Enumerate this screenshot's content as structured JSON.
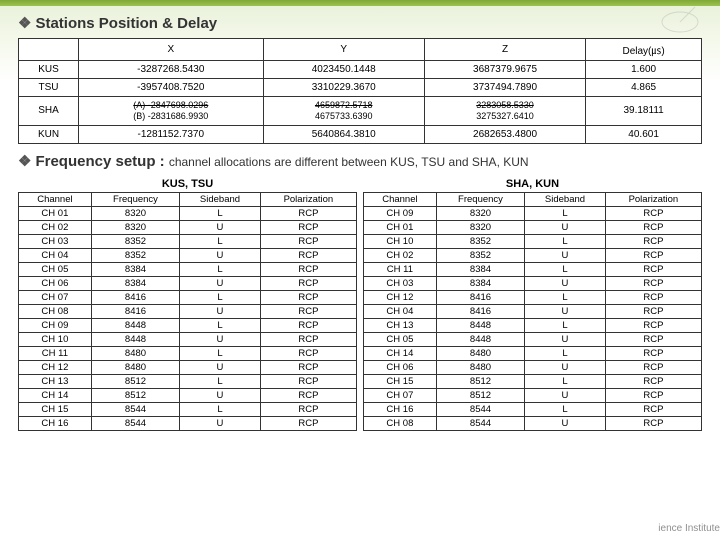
{
  "section1_title": "Stations Position & Delay",
  "section2_title_prefix": "Frequency setup : ",
  "section2_title_rest": "channel allocations are different between KUS, TSU and SHA, KUN",
  "stations": {
    "headers": [
      "",
      "X",
      "Y",
      "Z",
      "Delay(㎲)"
    ],
    "rows": [
      {
        "name": "KUS",
        "x": "-3287268.5430",
        "y": "4023450.1448",
        "z": "3687379.9675",
        "d": "1.600"
      },
      {
        "name": "TSU",
        "x": "-3957408.7520",
        "y": "3310229.3670",
        "z": "3737494.7890",
        "d": "4.865"
      },
      {
        "name": "SHA",
        "x_a": "(A) -2847698.0296",
        "x_b": "(B) -2831686.9930",
        "y_a": "4659872.5718",
        "y_b": "4675733.6390",
        "z_a": "3283058.5330",
        "z_b": "3275327.6410",
        "d": "39.18111"
      },
      {
        "name": "KUN",
        "x": "-1281152.7370",
        "y": "5640864.3810",
        "z": "2682653.4800",
        "d": "40.601"
      }
    ]
  },
  "freq_left_label": "KUS, TSU",
  "freq_right_label": "SHA, KUN",
  "freq_headers": [
    "Channel",
    "Frequency",
    "Sideband",
    "Polarization"
  ],
  "freq_left": [
    [
      "CH 01",
      "8320",
      "L",
      "RCP"
    ],
    [
      "CH 02",
      "8320",
      "U",
      "RCP"
    ],
    [
      "CH 03",
      "8352",
      "L",
      "RCP"
    ],
    [
      "CH 04",
      "8352",
      "U",
      "RCP"
    ],
    [
      "CH 05",
      "8384",
      "L",
      "RCP"
    ],
    [
      "CH 06",
      "8384",
      "U",
      "RCP"
    ],
    [
      "CH 07",
      "8416",
      "L",
      "RCP"
    ],
    [
      "CH 08",
      "8416",
      "U",
      "RCP"
    ],
    [
      "CH 09",
      "8448",
      "L",
      "RCP"
    ],
    [
      "CH 10",
      "8448",
      "U",
      "RCP"
    ],
    [
      "CH 11",
      "8480",
      "L",
      "RCP"
    ],
    [
      "CH 12",
      "8480",
      "U",
      "RCP"
    ],
    [
      "CH 13",
      "8512",
      "L",
      "RCP"
    ],
    [
      "CH 14",
      "8512",
      "U",
      "RCP"
    ],
    [
      "CH 15",
      "8544",
      "L",
      "RCP"
    ],
    [
      "CH 16",
      "8544",
      "U",
      "RCP"
    ]
  ],
  "freq_right": [
    [
      "CH 09",
      "8320",
      "L",
      "RCP"
    ],
    [
      "CH 01",
      "8320",
      "U",
      "RCP"
    ],
    [
      "CH 10",
      "8352",
      "L",
      "RCP"
    ],
    [
      "CH 02",
      "8352",
      "U",
      "RCP"
    ],
    [
      "CH 11",
      "8384",
      "L",
      "RCP"
    ],
    [
      "CH 03",
      "8384",
      "U",
      "RCP"
    ],
    [
      "CH 12",
      "8416",
      "L",
      "RCP"
    ],
    [
      "CH 04",
      "8416",
      "U",
      "RCP"
    ],
    [
      "CH 13",
      "8448",
      "L",
      "RCP"
    ],
    [
      "CH 05",
      "8448",
      "U",
      "RCP"
    ],
    [
      "CH 14",
      "8480",
      "L",
      "RCP"
    ],
    [
      "CH 06",
      "8480",
      "U",
      "RCP"
    ],
    [
      "CH 15",
      "8512",
      "L",
      "RCP"
    ],
    [
      "CH 07",
      "8512",
      "U",
      "RCP"
    ],
    [
      "CH 16",
      "8544",
      "L",
      "RCP"
    ],
    [
      "CH 08",
      "8544",
      "U",
      "RCP"
    ]
  ],
  "watermark": "ience Institute"
}
